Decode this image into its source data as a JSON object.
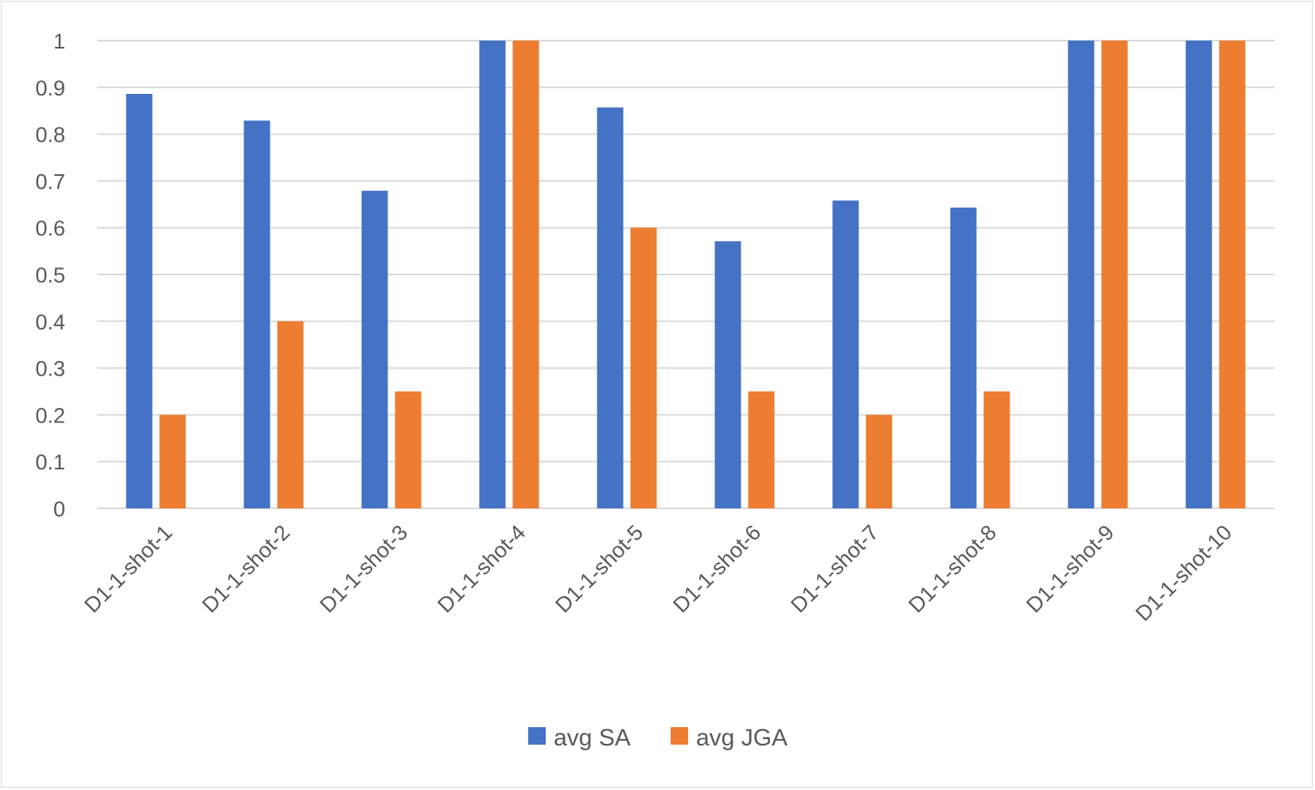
{
  "chart_data": {
    "type": "bar",
    "title": "",
    "xlabel": "",
    "ylabel": "",
    "ylim": [
      0,
      1
    ],
    "yticks": [
      "0",
      "0.1",
      "0.2",
      "0.3",
      "0.4",
      "0.5",
      "0.6",
      "0.7",
      "0.8",
      "0.9",
      "1"
    ],
    "grid": true,
    "legend_position": "bottom",
    "categories": [
      "D1-1-shot-1",
      "D1-1-shot-2",
      "D1-1-shot-3",
      "D1-1-shot-4",
      "D1-1-shot-5",
      "D1-1-shot-6",
      "D1-1-shot-7",
      "D1-1-shot-8",
      "D1-1-shot-9",
      "D1-1-shot-10"
    ],
    "series": [
      {
        "name": "avg SA",
        "color": "#4472C4",
        "values": [
          0.886,
          0.829,
          0.679,
          1.0,
          0.857,
          0.571,
          0.658,
          0.643,
          1.0,
          1.0
        ]
      },
      {
        "name": "avg JGA",
        "color": "#ED7D31",
        "values": [
          0.2,
          0.4,
          0.25,
          1.0,
          0.6,
          0.25,
          0.2,
          0.25,
          1.0,
          1.0
        ]
      }
    ]
  }
}
